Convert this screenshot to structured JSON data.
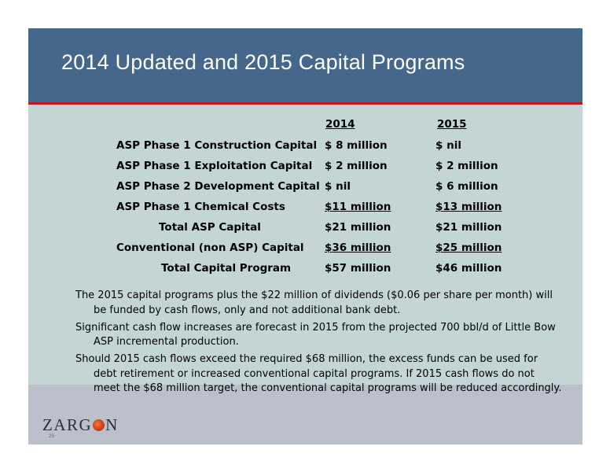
{
  "slide": {
    "title": "2014 Updated and 2015 Capital Programs",
    "page_number": "25",
    "logo_text": {
      "left": "ZARG",
      "right": "N"
    }
  },
  "capital_table": {
    "columns": [
      "2014",
      "2015"
    ],
    "rows": [
      {
        "label": "ASP Phase 1 Construction Capital",
        "v2014": "$ 8 million",
        "v2015": "$ nil",
        "underline": false,
        "indented": false
      },
      {
        "label": "ASP Phase 1 Exploitation Capital",
        "v2014": "$ 2 million",
        "v2015": "$ 2 million",
        "underline": false,
        "indented": false
      },
      {
        "label": "ASP Phase 2 Development Capital",
        "v2014": "$ nil",
        "v2015": "$ 6 million",
        "underline": false,
        "indented": false
      },
      {
        "label": "ASP Phase 1 Chemical Costs",
        "v2014": "$11 million",
        "v2015": "$13 million",
        "underline": true,
        "indented": false
      },
      {
        "label": "Total ASP Capital",
        "v2014": "$21 million",
        "v2015": "$21 million",
        "underline": false,
        "indented": true
      },
      {
        "label": "Conventional (non ASP) Capital",
        "v2014": "$36 million",
        "v2015": "$25 million",
        "underline": true,
        "indented": false
      },
      {
        "label": "Total Capital Program",
        "v2014": "$57 million",
        "v2015": "$46 million",
        "underline": false,
        "indented": true
      }
    ]
  },
  "notes": [
    "The 2015 capital programs plus the $22 million of dividends ($0.06 per share per month) will be funded by cash flows, only and not additional bank debt.",
    "Significant cash flow increases are forecast in 2015 from the projected 700 bbl/d of Little Bow ASP incremental production.",
    "Should 2015 cash flows exceed the required $68 million, the excess funds can be used for debt retirement or increased conventional capital programs. If 2015 cash flows do not meet the $68 million target, the conventional capital programs will be reduced accordingly."
  ],
  "colors": {
    "title_band": "#44678b",
    "rule": "#c0181f",
    "content_band": "#c4d5d6",
    "footer_band": "#bcc0cb"
  }
}
